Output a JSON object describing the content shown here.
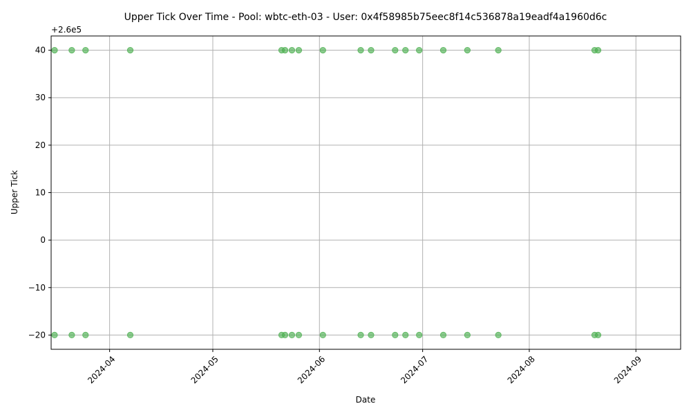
{
  "chart_data": {
    "type": "scatter",
    "title": "Upper Tick Over Time - Pool: wbtc-eth-03 - User: 0x4f58985b75eec8f14c536878a19eadf4a1960d6c",
    "xlabel": "Date",
    "ylabel": "Upper Tick",
    "y_offset_label": "+2.6e5",
    "xlim": [
      "2024-03-15",
      "2024-09-14"
    ],
    "ylim": [
      -23,
      43
    ],
    "x_ticks": [
      "2024-04-01",
      "2024-05-01",
      "2024-06-01",
      "2024-07-01",
      "2024-08-01",
      "2024-09-01"
    ],
    "x_tick_labels": [
      "2024-04",
      "2024-05",
      "2024-06",
      "2024-07",
      "2024-08",
      "2024-09"
    ],
    "y_ticks": [
      -20,
      -10,
      0,
      10,
      20,
      30,
      40
    ],
    "y_tick_labels": [
      "−20",
      "−10",
      "0",
      "10",
      "20",
      "30",
      "40"
    ],
    "grid": true,
    "marker_color": "#4caf50",
    "points": [
      {
        "x": "2024-03-16",
        "y": 40
      },
      {
        "x": "2024-03-16",
        "y": -20
      },
      {
        "x": "2024-03-21",
        "y": 40
      },
      {
        "x": "2024-03-21",
        "y": -20
      },
      {
        "x": "2024-03-25",
        "y": 40
      },
      {
        "x": "2024-03-25",
        "y": -20
      },
      {
        "x": "2024-04-07",
        "y": 40
      },
      {
        "x": "2024-04-07",
        "y": -20
      },
      {
        "x": "2024-05-21",
        "y": 40
      },
      {
        "x": "2024-05-21",
        "y": -20
      },
      {
        "x": "2024-05-22",
        "y": 40
      },
      {
        "x": "2024-05-22",
        "y": -20
      },
      {
        "x": "2024-05-24",
        "y": 40
      },
      {
        "x": "2024-05-24",
        "y": -20
      },
      {
        "x": "2024-05-26",
        "y": 40
      },
      {
        "x": "2024-05-26",
        "y": -20
      },
      {
        "x": "2024-06-02",
        "y": 40
      },
      {
        "x": "2024-06-02",
        "y": -20
      },
      {
        "x": "2024-06-13",
        "y": 40
      },
      {
        "x": "2024-06-13",
        "y": -20
      },
      {
        "x": "2024-06-16",
        "y": 40
      },
      {
        "x": "2024-06-16",
        "y": -20
      },
      {
        "x": "2024-06-23",
        "y": 40
      },
      {
        "x": "2024-06-23",
        "y": -20
      },
      {
        "x": "2024-06-26",
        "y": 40
      },
      {
        "x": "2024-06-26",
        "y": -20
      },
      {
        "x": "2024-06-30",
        "y": 40
      },
      {
        "x": "2024-06-30",
        "y": -20
      },
      {
        "x": "2024-07-07",
        "y": 40
      },
      {
        "x": "2024-07-07",
        "y": -20
      },
      {
        "x": "2024-07-14",
        "y": 40
      },
      {
        "x": "2024-07-14",
        "y": -20
      },
      {
        "x": "2024-07-23",
        "y": 40
      },
      {
        "x": "2024-07-23",
        "y": -20
      },
      {
        "x": "2024-08-20",
        "y": 40
      },
      {
        "x": "2024-08-20",
        "y": -20
      },
      {
        "x": "2024-08-21",
        "y": 40
      },
      {
        "x": "2024-08-21",
        "y": -20
      }
    ]
  }
}
